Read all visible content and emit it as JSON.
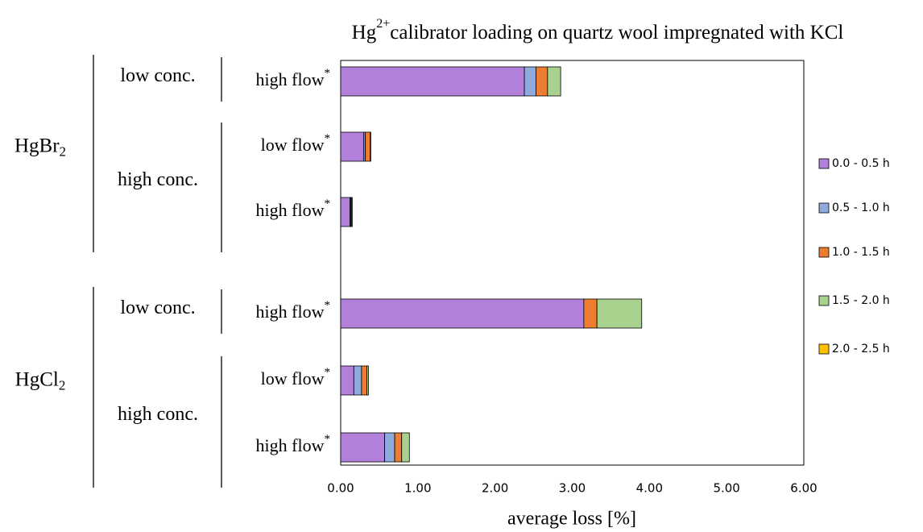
{
  "chart_data": {
    "type": "bar",
    "orientation": "horizontal",
    "stacked": true,
    "title": {
      "base": "Hg",
      "sup": "2+",
      "rest": "calibrator loading on quartz wool impregnated with KCl"
    },
    "x_label": "average loss [%]",
    "categories": [
      "high flow",
      "low flow",
      "high flow",
      "high flow",
      "low flow",
      "high flow"
    ],
    "category_marker": "*",
    "groups": [
      {
        "label": {
          "base": "HgBr",
          "sub": "2"
        },
        "subgroups": [
          {
            "label": "low conc.",
            "rows": [
              0
            ]
          },
          {
            "label": "high conc.",
            "rows": [
              1,
              2
            ]
          }
        ]
      },
      {
        "label": {
          "base": "HgCl",
          "sub": "2"
        },
        "subgroups": [
          {
            "label": "low conc.",
            "rows": [
              3
            ]
          },
          {
            "label": "high conc.",
            "rows": [
              4,
              5
            ]
          }
        ]
      }
    ],
    "series": [
      {
        "name": "0.0 - 0.5 h",
        "color": "#b27fdb",
        "values": [
          2.38,
          0.3,
          0.12,
          3.15,
          0.17,
          0.57
        ]
      },
      {
        "name": "0.5 - 1.0 h",
        "color": "#8faadc",
        "values": [
          0.15,
          0.02,
          0.01,
          0,
          0.1,
          0.13
        ]
      },
      {
        "name": "1.0 - 1.5 h",
        "color": "#ed7d31",
        "values": [
          0.15,
          0.06,
          0.01,
          0.17,
          0.07,
          0.09
        ]
      },
      {
        "name": "1.5 - 2.0 h",
        "color": "#a9d18e",
        "values": [
          0.17,
          0.01,
          0.01,
          0.58,
          0.02,
          0.1
        ]
      },
      {
        "name": "2.0 - 2.5 h",
        "color": "#ffc000",
        "values": [
          0,
          0,
          0,
          0,
          0,
          0
        ]
      }
    ],
    "xlim": [
      0,
      6
    ],
    "xticks": [
      {
        "value": 0,
        "label": "0.00"
      },
      {
        "value": 1,
        "label": "1.00"
      },
      {
        "value": 2,
        "label": "2.00"
      },
      {
        "value": 3,
        "label": "3.00"
      },
      {
        "value": 4,
        "label": "4.00"
      },
      {
        "value": 5,
        "label": "5.00"
      },
      {
        "value": 6,
        "label": "6.00"
      }
    ],
    "legend": "right"
  }
}
